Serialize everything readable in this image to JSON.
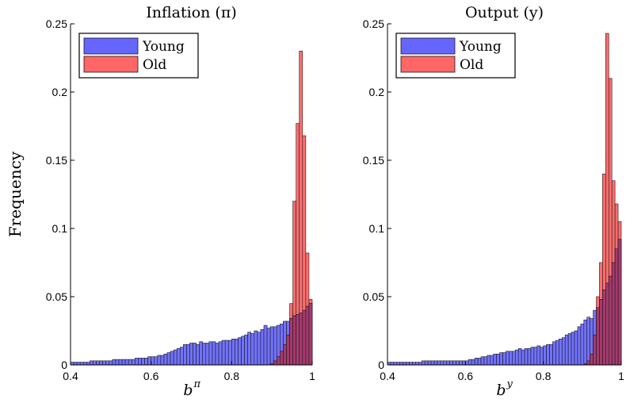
{
  "ylabel": "Frequency",
  "chart_data": [
    {
      "type": "bar",
      "title": "Inflation (π)",
      "xlabel": "b",
      "xlabel_superscript": "π",
      "xlim": [
        0.4,
        1.0
      ],
      "ylim": [
        0,
        0.25
      ],
      "xticks": [
        "0.4",
        "0.6",
        "0.8",
        "1"
      ],
      "yticks": [
        "0",
        "0.05",
        "0.1",
        "0.15",
        "0.2",
        "0.25"
      ],
      "legend": {
        "position": "top-left",
        "entries": [
          "Young",
          "Old"
        ]
      },
      "bin_width": 0.008,
      "bins": [
        0.4,
        0.408,
        0.416,
        0.424,
        0.432,
        0.44,
        0.448,
        0.456,
        0.464,
        0.472,
        0.48,
        0.488,
        0.496,
        0.504,
        0.512,
        0.52,
        0.528,
        0.536,
        0.544,
        0.552,
        0.56,
        0.568,
        0.576,
        0.584,
        0.592,
        0.6,
        0.608,
        0.616,
        0.624,
        0.632,
        0.64,
        0.648,
        0.656,
        0.664,
        0.672,
        0.68,
        0.688,
        0.696,
        0.704,
        0.712,
        0.72,
        0.728,
        0.736,
        0.744,
        0.752,
        0.76,
        0.768,
        0.776,
        0.784,
        0.792,
        0.8,
        0.808,
        0.816,
        0.824,
        0.832,
        0.84,
        0.848,
        0.856,
        0.864,
        0.872,
        0.88,
        0.888,
        0.896,
        0.904,
        0.912,
        0.92,
        0.928,
        0.936,
        0.944,
        0.952,
        0.96,
        0.968,
        0.976,
        0.984,
        0.992
      ],
      "series": [
        {
          "name": "Young",
          "color": "#6666ff",
          "values": [
            0.002,
            0.002,
            0.002,
            0.002,
            0.002,
            0.002,
            0.003,
            0.003,
            0.003,
            0.003,
            0.003,
            0.003,
            0.003,
            0.004,
            0.004,
            0.004,
            0.004,
            0.004,
            0.004,
            0.004,
            0.005,
            0.005,
            0.005,
            0.005,
            0.006,
            0.006,
            0.006,
            0.007,
            0.007,
            0.008,
            0.009,
            0.01,
            0.011,
            0.012,
            0.013,
            0.015,
            0.015,
            0.016,
            0.016,
            0.015,
            0.017,
            0.016,
            0.016,
            0.017,
            0.017,
            0.016,
            0.017,
            0.018,
            0.018,
            0.018,
            0.019,
            0.019,
            0.02,
            0.021,
            0.022,
            0.024,
            0.023,
            0.025,
            0.024,
            0.026,
            0.029,
            0.027,
            0.028,
            0.028,
            0.029,
            0.03,
            0.032,
            0.032,
            0.034,
            0.036,
            0.037,
            0.038,
            0.04,
            0.043,
            0.045
          ]
        },
        {
          "name": "Old",
          "color": "#ff6666",
          "values": [
            0.0,
            0.0,
            0.0,
            0.0,
            0.0,
            0.0,
            0.0,
            0.0,
            0.0,
            0.0,
            0.0,
            0.0,
            0.0,
            0.0,
            0.0,
            0.0,
            0.0,
            0.0,
            0.0,
            0.0,
            0.0,
            0.0,
            0.0,
            0.0,
            0.0,
            0.0,
            0.0,
            0.0,
            0.0,
            0.0,
            0.0,
            0.0,
            0.0,
            0.0,
            0.0,
            0.0,
            0.0,
            0.0,
            0.0,
            0.0,
            0.0,
            0.0,
            0.0,
            0.0,
            0.0,
            0.0,
            0.0,
            0.0,
            0.0,
            0.0,
            0.0,
            0.0,
            0.0,
            0.0,
            0.0,
            0.0,
            0.0,
            0.0,
            0.0,
            0.0,
            0.0,
            0.0,
            0.001,
            0.003,
            0.006,
            0.01,
            0.015,
            0.022,
            0.045,
            0.12,
            0.177,
            0.23,
            0.168,
            0.082,
            0.048
          ]
        }
      ]
    },
    {
      "type": "bar",
      "title": "Output (y)",
      "xlabel": "b",
      "xlabel_superscript": "y",
      "xlim": [
        0.4,
        1.0
      ],
      "ylim": [
        0,
        0.25
      ],
      "xticks": [
        "0.4",
        "0.6",
        "0.8",
        "1"
      ],
      "yticks": [
        "0",
        "0.05",
        "0.1",
        "0.15",
        "0.2",
        "0.25"
      ],
      "legend": {
        "position": "top-left",
        "entries": [
          "Young",
          "Old"
        ]
      },
      "bin_width": 0.008,
      "bins": [
        0.4,
        0.408,
        0.416,
        0.424,
        0.432,
        0.44,
        0.448,
        0.456,
        0.464,
        0.472,
        0.48,
        0.488,
        0.496,
        0.504,
        0.512,
        0.52,
        0.528,
        0.536,
        0.544,
        0.552,
        0.56,
        0.568,
        0.576,
        0.584,
        0.592,
        0.6,
        0.608,
        0.616,
        0.624,
        0.632,
        0.64,
        0.648,
        0.656,
        0.664,
        0.672,
        0.68,
        0.688,
        0.696,
        0.704,
        0.712,
        0.72,
        0.728,
        0.736,
        0.744,
        0.752,
        0.76,
        0.768,
        0.776,
        0.784,
        0.792,
        0.8,
        0.808,
        0.816,
        0.824,
        0.832,
        0.84,
        0.848,
        0.856,
        0.864,
        0.872,
        0.88,
        0.888,
        0.896,
        0.904,
        0.912,
        0.92,
        0.928,
        0.936,
        0.944,
        0.952,
        0.96,
        0.968,
        0.976,
        0.984,
        0.992
      ],
      "series": [
        {
          "name": "Young",
          "color": "#6666ff",
          "values": [
            0.002,
            0.002,
            0.002,
            0.002,
            0.002,
            0.002,
            0.002,
            0.002,
            0.002,
            0.002,
            0.002,
            0.003,
            0.003,
            0.003,
            0.003,
            0.003,
            0.003,
            0.003,
            0.003,
            0.003,
            0.003,
            0.003,
            0.003,
            0.003,
            0.003,
            0.003,
            0.004,
            0.004,
            0.005,
            0.005,
            0.006,
            0.006,
            0.007,
            0.007,
            0.008,
            0.008,
            0.009,
            0.009,
            0.01,
            0.01,
            0.01,
            0.011,
            0.012,
            0.011,
            0.012,
            0.012,
            0.013,
            0.013,
            0.014,
            0.013,
            0.014,
            0.015,
            0.015,
            0.017,
            0.018,
            0.019,
            0.02,
            0.022,
            0.023,
            0.024,
            0.025,
            0.028,
            0.03,
            0.033,
            0.035,
            0.034,
            0.04,
            0.042,
            0.048,
            0.055,
            0.06,
            0.065,
            0.075,
            0.085,
            0.092
          ]
        },
        {
          "name": "Old",
          "color": "#ff6666",
          "values": [
            0.0,
            0.0,
            0.0,
            0.0,
            0.0,
            0.0,
            0.0,
            0.0,
            0.0,
            0.0,
            0.0,
            0.0,
            0.0,
            0.0,
            0.0,
            0.0,
            0.0,
            0.0,
            0.0,
            0.0,
            0.0,
            0.0,
            0.0,
            0.0,
            0.0,
            0.0,
            0.0,
            0.0,
            0.0,
            0.0,
            0.0,
            0.0,
            0.0,
            0.0,
            0.0,
            0.0,
            0.0,
            0.0,
            0.0,
            0.0,
            0.0,
            0.0,
            0.0,
            0.0,
            0.0,
            0.0,
            0.0,
            0.0,
            0.0,
            0.0,
            0.0,
            0.0,
            0.0,
            0.0,
            0.0,
            0.0,
            0.0,
            0.0,
            0.0,
            0.0,
            0.0,
            0.0,
            0.0,
            0.001,
            0.003,
            0.008,
            0.022,
            0.05,
            0.075,
            0.14,
            0.243,
            0.21,
            0.135,
            0.118,
            0.105
          ]
        }
      ]
    }
  ]
}
